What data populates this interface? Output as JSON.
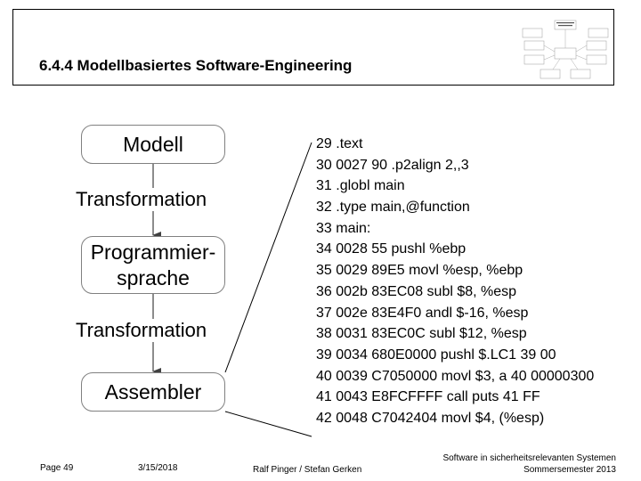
{
  "slide": {
    "title": "6.4.4 Modellbasiertes Software-Engineering"
  },
  "diagram": {
    "boxes": {
      "modell": "Modell",
      "programmiersprache_line1": "Programmier-",
      "programmiersprache_line2": "sprache",
      "assembler": "Assembler"
    },
    "transform_labels": [
      "Transformation",
      "Transformation"
    ]
  },
  "code_lines": [
    "29 .text",
    "30 0027 90 .p2align 2,,3",
    "31 .globl main",
    "32 .type main,@function",
    "33 main:",
    "34 0028 55 pushl %ebp",
    "35 0029 89E5 movl %esp, %ebp",
    "36 002b 83EC08 subl $8, %esp",
    "37 002e 83E4F0 andl $-16, %esp",
    "38 0031 83EC0C subl $12, %esp",
    "39 0034 680E0000 pushl $.LC1 39 00",
    "40 0039 C7050000 movl $3, a 40 00000300",
    "41 0043 E8FCFFFF call puts 41 FF",
    "42 0048 C7042404 movl $4, (%esp)"
  ],
  "footer": {
    "page": "Page 49",
    "date": "3/15/2018",
    "authors": "Ralf Pinger / Stefan Gerken",
    "course_line1": "Software in sicherheitsrelevanten Systemen",
    "course_line2": "Sommersemester 2013"
  },
  "colors": {
    "box_border": "#808080",
    "arrow": "#404040"
  }
}
